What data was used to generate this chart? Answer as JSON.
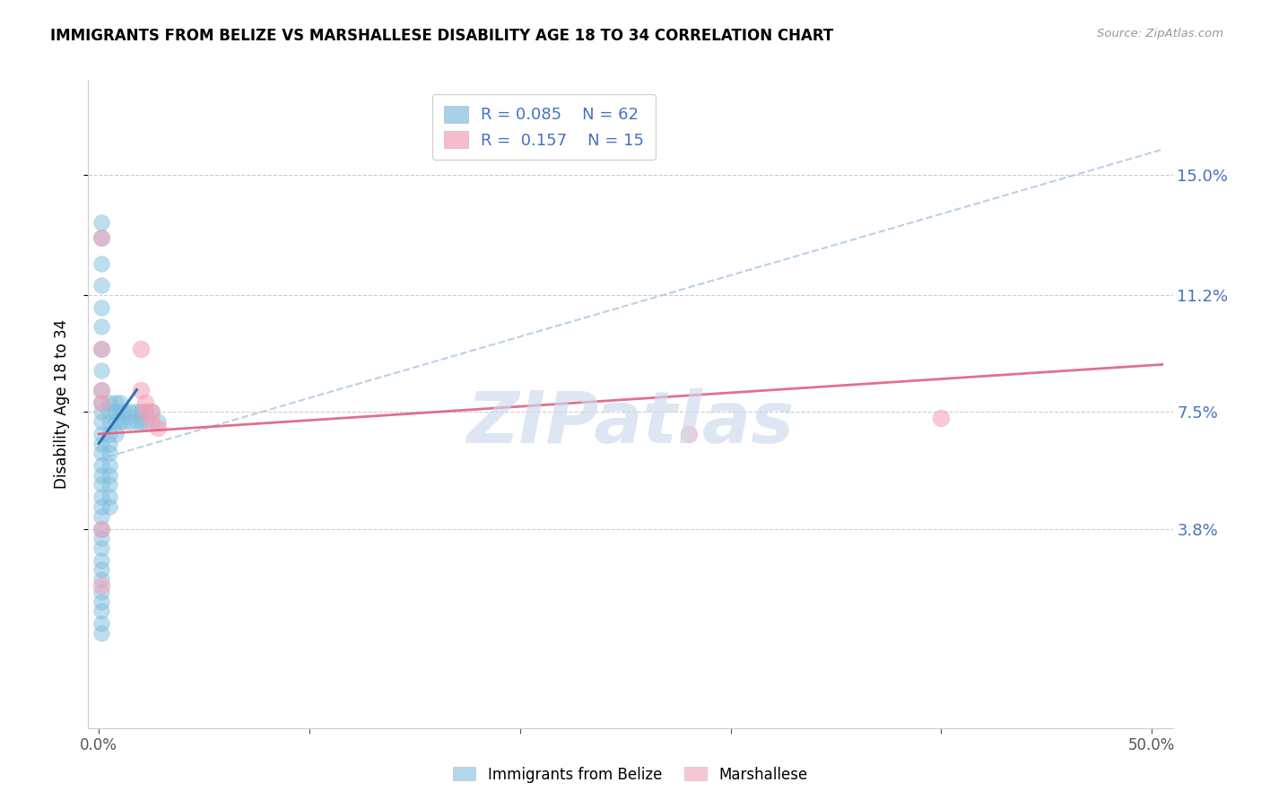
{
  "title": "IMMIGRANTS FROM BELIZE VS MARSHALLESE DISABILITY AGE 18 TO 34 CORRELATION CHART",
  "source": "Source: ZipAtlas.com",
  "ylabel_label": "Disability Age 18 to 34",
  "ylabel_ticks": [
    "3.8%",
    "7.5%",
    "11.2%",
    "15.0%"
  ],
  "ylabel_values": [
    0.038,
    0.075,
    0.112,
    0.15
  ],
  "xlim": [
    -0.005,
    0.51
  ],
  "ylim": [
    -0.025,
    0.18
  ],
  "belize_r": 0.085,
  "belize_n": 62,
  "marsh_r": 0.157,
  "marsh_n": 15,
  "belize_color": "#7fbfdf",
  "marsh_color": "#f4a0b5",
  "belize_line_color": "#2166ac",
  "marsh_line_color": "#e06080",
  "dashed_line_color": "#b0c8e0",
  "watermark": "ZIPatlas",
  "belize_x": [
    0.001,
    0.001,
    0.001,
    0.001,
    0.001,
    0.001,
    0.001,
    0.001,
    0.001,
    0.001,
    0.001,
    0.001,
    0.001,
    0.001,
    0.001,
    0.001,
    0.001,
    0.001,
    0.001,
    0.001,
    0.001,
    0.001,
    0.001,
    0.001,
    0.001,
    0.001,
    0.001,
    0.001,
    0.001,
    0.001,
    0.001,
    0.001,
    0.005,
    0.005,
    0.005,
    0.005,
    0.005,
    0.005,
    0.005,
    0.005,
    0.005,
    0.005,
    0.005,
    0.008,
    0.008,
    0.008,
    0.008,
    0.01,
    0.01,
    0.01,
    0.012,
    0.012,
    0.015,
    0.015,
    0.018,
    0.018,
    0.02,
    0.02,
    0.022,
    0.022,
    0.025,
    0.028
  ],
  "belize_y": [
    0.135,
    0.13,
    0.122,
    0.115,
    0.108,
    0.102,
    0.095,
    0.088,
    0.082,
    0.078,
    0.075,
    0.072,
    0.068,
    0.065,
    0.062,
    0.058,
    0.055,
    0.052,
    0.048,
    0.045,
    0.042,
    0.038,
    0.035,
    0.032,
    0.028,
    0.025,
    0.022,
    0.018,
    0.015,
    0.012,
    0.008,
    0.005,
    0.078,
    0.075,
    0.072,
    0.068,
    0.065,
    0.062,
    0.058,
    0.055,
    0.052,
    0.048,
    0.045,
    0.078,
    0.075,
    0.072,
    0.068,
    0.078,
    0.075,
    0.072,
    0.075,
    0.072,
    0.075,
    0.072,
    0.075,
    0.072,
    0.075,
    0.072,
    0.075,
    0.072,
    0.075,
    0.072
  ],
  "marsh_x": [
    0.001,
    0.001,
    0.001,
    0.001,
    0.02,
    0.02,
    0.022,
    0.022,
    0.025,
    0.025,
    0.028,
    0.28,
    0.4,
    0.001,
    0.001
  ],
  "marsh_y": [
    0.13,
    0.095,
    0.082,
    0.078,
    0.095,
    0.082,
    0.078,
    0.075,
    0.075,
    0.072,
    0.07,
    0.068,
    0.073,
    0.038,
    0.02
  ],
  "belize_trend_x": [
    0.0,
    0.018
  ],
  "belize_trend_y": [
    0.065,
    0.082
  ],
  "marsh_trend_x": [
    0.0,
    0.505
  ],
  "marsh_trend_y": [
    0.068,
    0.09
  ],
  "dashed_trend_x": [
    0.0,
    0.505
  ],
  "dashed_trend_y": [
    0.06,
    0.158
  ]
}
